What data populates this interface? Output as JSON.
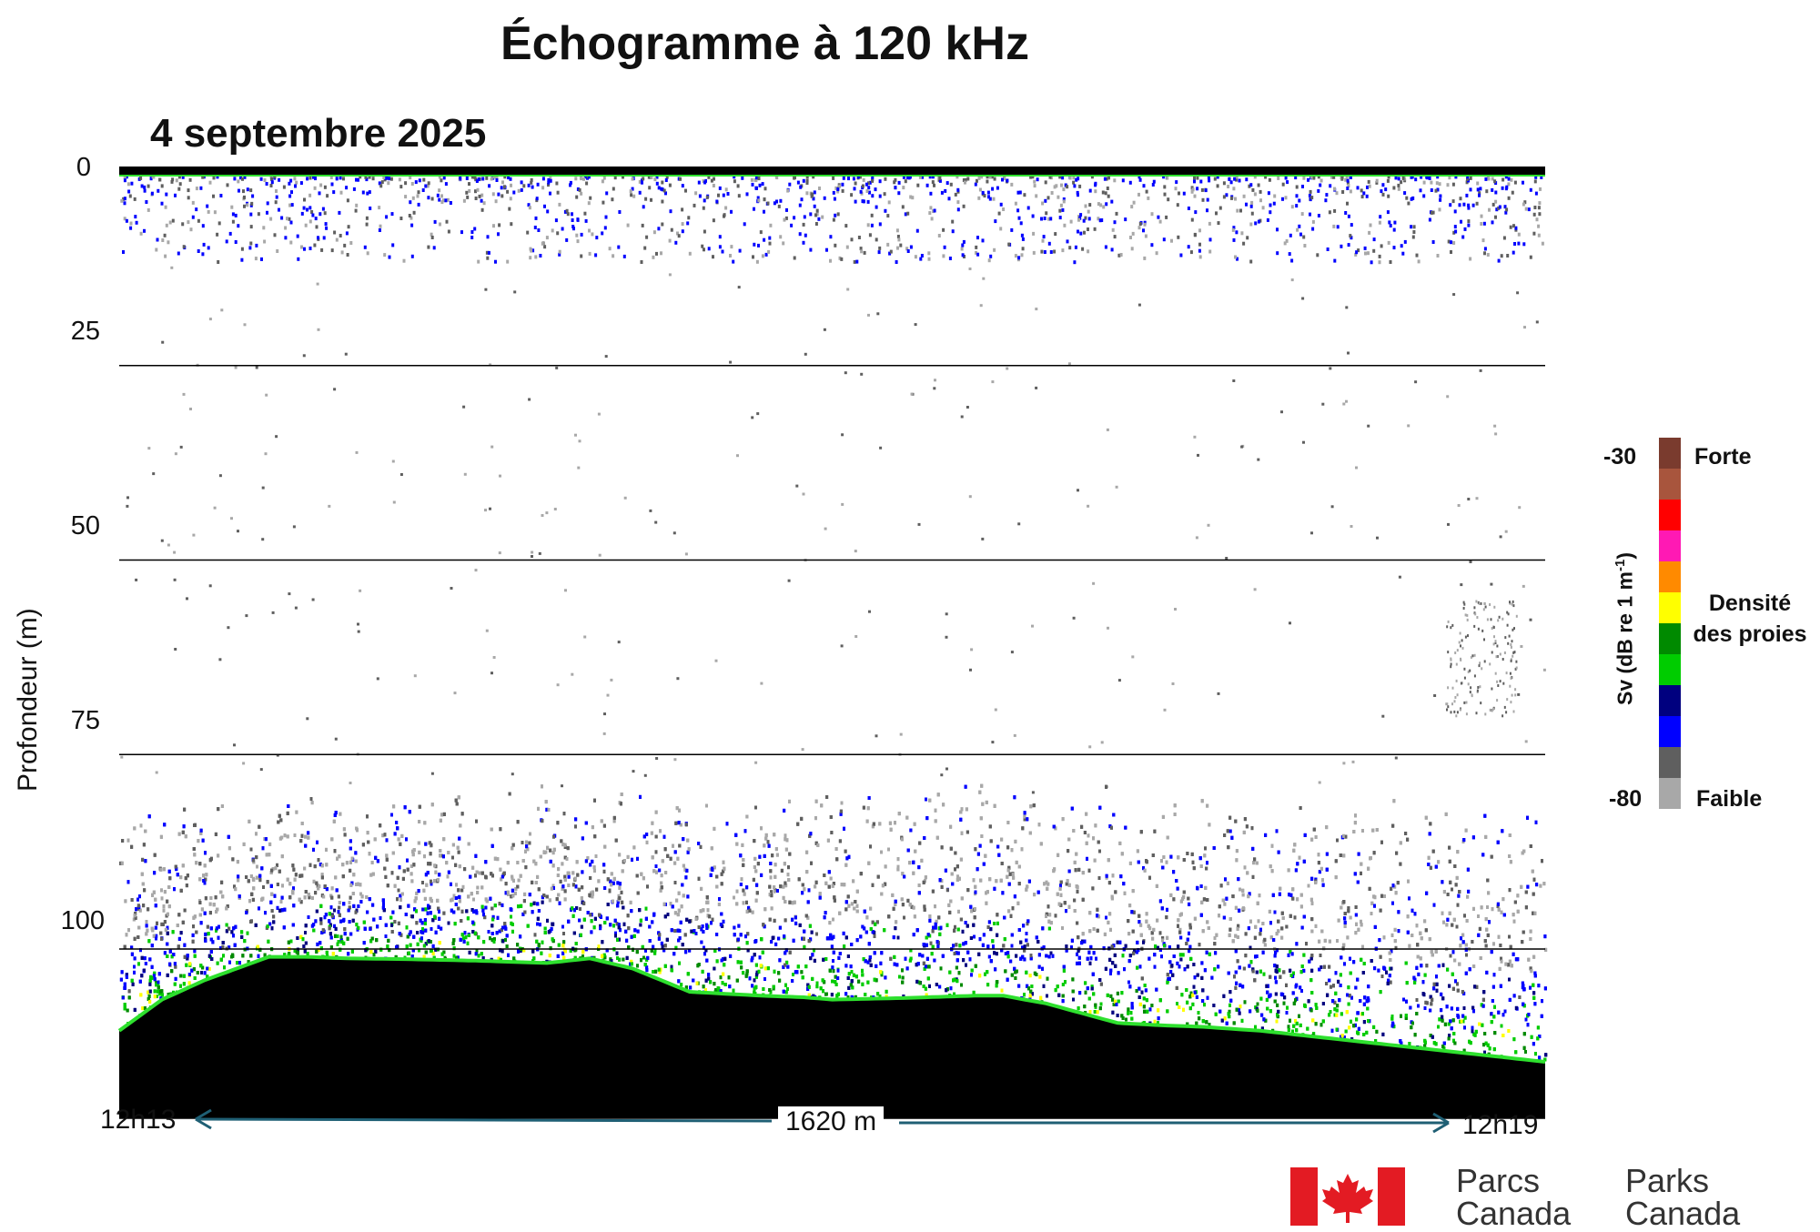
{
  "title": "Échogramme à 120 kHz",
  "date": "4 septembre 2025",
  "colors": {
    "seabed": "#000000",
    "seabed_edge": "#2ee02e",
    "grid": "#000000",
    "arrow": "#1f5f74",
    "flag_red": "#e31b23"
  },
  "chart_data": {
    "type": "heatmap",
    "title": "Échogramme à 120 kHz",
    "subtitle": "4 septembre 2025",
    "ylabel": "Profondeur (m)",
    "y_ticks": [
      "0",
      "25",
      "50",
      "75",
      "100"
    ],
    "ylim": [
      0,
      116
    ],
    "y_reversed": true,
    "x_start_label": "12h13",
    "x_end_label": "12h19",
    "x_distance_label": "1620 m",
    "x_distance_m": 1620,
    "grid": "horizontal at 25 m intervals",
    "seabed_profile": {
      "x_fraction": [
        0,
        0.03,
        0.06,
        0.09,
        0.105,
        0.13,
        0.16,
        0.2,
        0.25,
        0.3,
        0.33,
        0.36,
        0.38,
        0.4,
        0.45,
        0.48,
        0.5,
        0.55,
        0.6,
        0.62,
        0.65,
        0.68,
        0.7,
        0.73,
        0.76,
        0.8,
        0.85,
        0.9,
        0.95,
        1.0
      ],
      "depth_m": [
        110.5,
        106.5,
        104,
        102,
        101,
        101,
        101.2,
        101.3,
        101.5,
        101.8,
        101.2,
        102.5,
        104,
        105.5,
        106,
        106.2,
        106.5,
        106.3,
        106,
        106,
        107,
        108.5,
        109.5,
        109.8,
        110,
        110.5,
        111.5,
        112.5,
        113.5,
        114.5
      ]
    },
    "colorbar": {
      "label": "Sv (dB re 1 m-1)",
      "label_main": "Sv (dB re 1 m",
      "label_exp": "-1",
      "label_close": ")",
      "max": -30,
      "min": -80,
      "max_label": "-30",
      "min_label": "-80",
      "top_word": "Forte",
      "bottom_word": "Faible",
      "middle_line1": "Densité",
      "middle_line2": "des proies",
      "colors": [
        "#7a3b2e",
        "#a8553d",
        "#ff0000",
        "#ff19b4",
        "#ff8a00",
        "#ffff00",
        "#008a00",
        "#00cc00",
        "#00007f",
        "#0000ff",
        "#5f5f5f",
        "#a8a8a8"
      ]
    }
  },
  "logo": {
    "fr_line1": "Parcs",
    "fr_line2": "Canada",
    "en_line1": "Parks",
    "en_line2": "Canada"
  }
}
